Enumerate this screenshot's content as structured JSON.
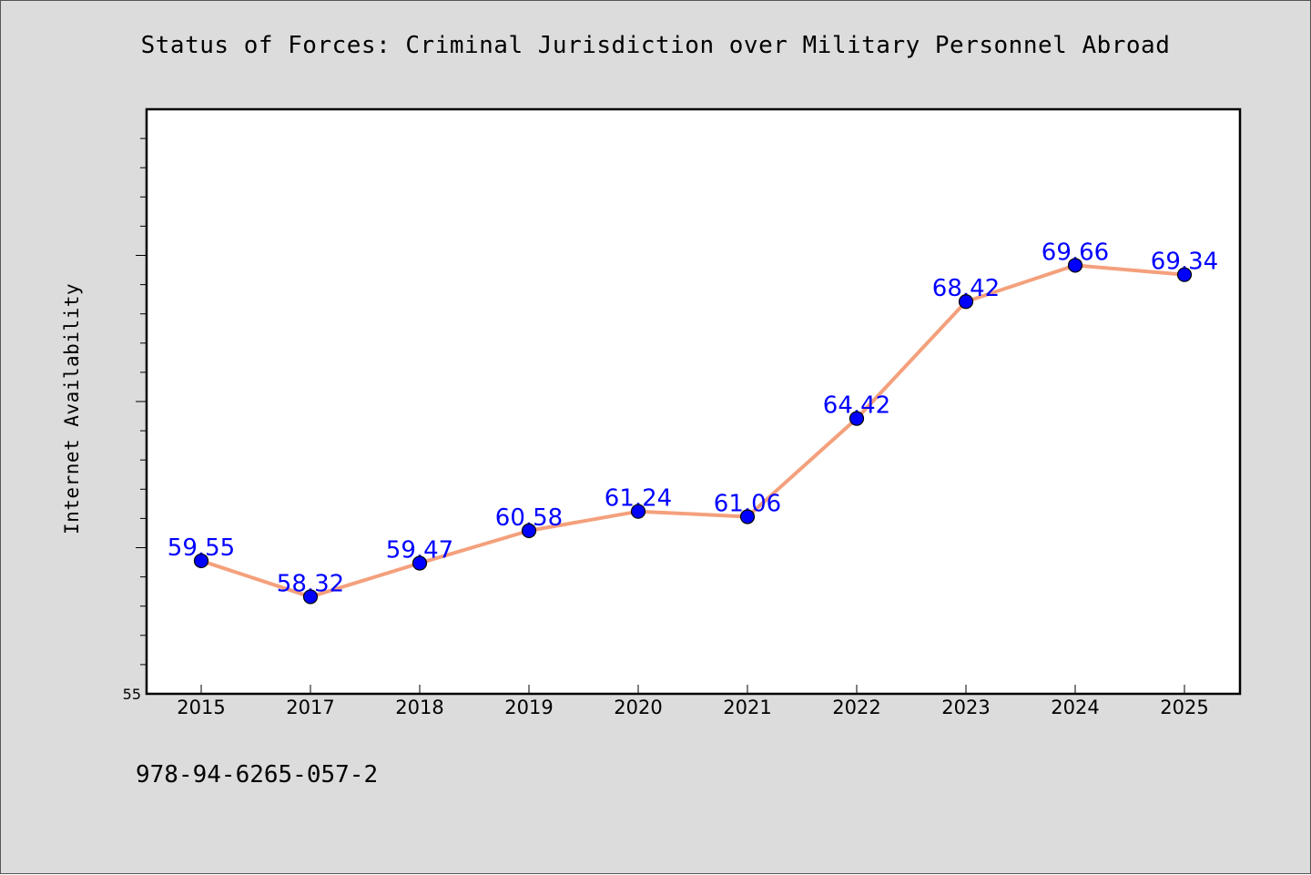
{
  "colors": {
    "background": "#dcdcdc",
    "plot_background": "#ffffff",
    "line": "#f4a07c",
    "marker": "#0000ff",
    "data_label": "#0000ff",
    "axis": "#000000"
  },
  "footer": {
    "code": "978-94-6265-057-2"
  },
  "chart_data": {
    "type": "line",
    "title": "Status of Forces: Criminal Jurisdiction over Military Personnel Abroad",
    "xlabel": "",
    "ylabel": "Internet Availability",
    "categories": [
      "2015",
      "2017",
      "2018",
      "2019",
      "2020",
      "2021",
      "2022",
      "2023",
      "2024",
      "2025"
    ],
    "series": [
      {
        "values": [
          59.55,
          58.32,
          59.47,
          60.58,
          61.24,
          61.06,
          64.42,
          68.42,
          69.66,
          69.34
        ],
        "labels": [
          "59.55",
          "58.32",
          "59.47",
          "60.58",
          "61.24",
          "61.06",
          "64.42",
          "68.42",
          "69.66",
          "69.34"
        ]
      }
    ],
    "ylim": [
      55,
      75
    ],
    "y_tick_labels": [
      "55"
    ],
    "y_minor_step": 1,
    "y_major_step": 5,
    "grid": false,
    "marker": "circle"
  }
}
